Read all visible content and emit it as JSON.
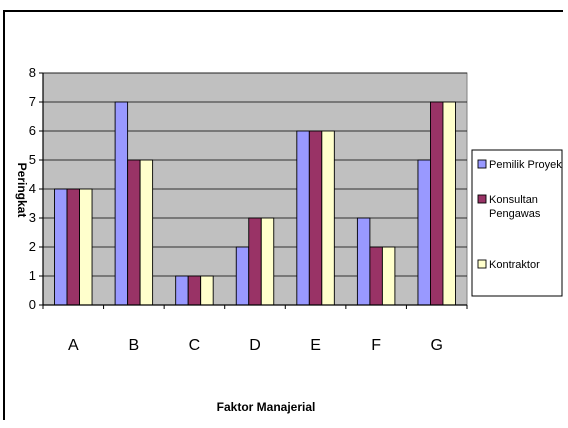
{
  "chart_data": {
    "type": "bar",
    "title": "",
    "xlabel": "Faktor Manajerial",
    "ylabel": "Peringkat",
    "categories": [
      "A",
      "B",
      "C",
      "D",
      "E",
      "F",
      "G"
    ],
    "ylim": [
      0,
      8
    ],
    "yticks": [
      0,
      1,
      2,
      3,
      4,
      5,
      6,
      7,
      8
    ],
    "grid": true,
    "legend_position": "right",
    "plot_background": "#c0c0c0",
    "series": [
      {
        "name": "Pemilik Proyek",
        "legend_lines": [
          "Pemilik Proyek"
        ],
        "color": "#9999ff",
        "values": [
          4,
          7,
          1,
          2,
          6,
          3,
          5
        ]
      },
      {
        "name": "Konsultan Pengawas",
        "legend_lines": [
          "Konsultan",
          "Pengawas"
        ],
        "color": "#993366",
        "values": [
          4,
          5,
          1,
          3,
          6,
          2,
          7
        ]
      },
      {
        "name": "Kontraktor",
        "legend_lines": [
          "Kontraktor"
        ],
        "color": "#ffffcc",
        "values": [
          4,
          5,
          1,
          3,
          6,
          2,
          7
        ]
      }
    ]
  }
}
